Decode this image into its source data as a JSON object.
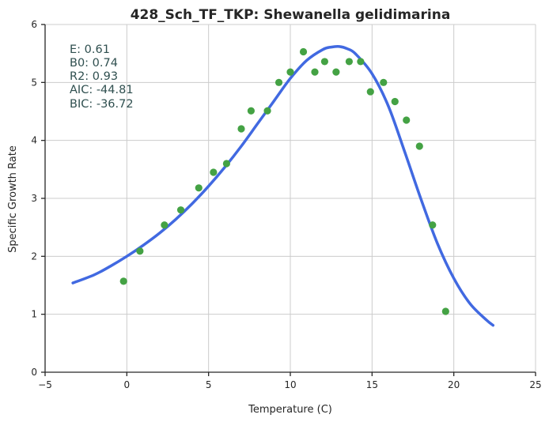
{
  "chart_data": {
    "type": "scatter",
    "title": "428_Sch_TF_TKP: Shewanella gelidimarina",
    "xlabel": "Temperature (C)",
    "ylabel": "Specific Growth Rate",
    "xlim": [
      -5,
      25
    ],
    "ylim": [
      0,
      6
    ],
    "xticks": [
      -5,
      0,
      5,
      10,
      15,
      20,
      25
    ],
    "yticks": [
      0,
      1,
      2,
      3,
      4,
      5,
      6
    ],
    "xtick_labels": [
      "−5",
      "0",
      "5",
      "10",
      "15",
      "20",
      "25"
    ],
    "ytick_labels": [
      "0",
      "1",
      "2",
      "3",
      "4",
      "5",
      "6"
    ],
    "grid": true,
    "points": {
      "color": "#44a244",
      "x": [
        -0.2,
        0.8,
        2.3,
        3.3,
        4.4,
        5.3,
        6.1,
        7.0,
        7.6,
        8.6,
        9.3,
        10.0,
        10.8,
        11.5,
        12.1,
        12.8,
        13.6,
        14.3,
        14.9,
        15.7,
        16.4,
        17.1,
        17.9,
        18.7,
        19.5
      ],
      "y": [
        1.57,
        2.09,
        2.54,
        2.8,
        3.18,
        3.45,
        3.6,
        4.2,
        4.51,
        4.51,
        5.0,
        5.18,
        5.53,
        5.18,
        5.36,
        5.18,
        5.36,
        5.36,
        4.84,
        5.0,
        4.67,
        4.35,
        3.9,
        2.54,
        1.05
      ]
    },
    "fit_curve": {
      "color": "#4169e1",
      "x": [
        -3.3,
        -2,
        -1,
        0,
        1,
        2,
        3,
        4,
        5,
        6,
        7,
        8,
        9,
        10,
        11,
        12,
        12.5,
        13,
        13.5,
        14,
        15,
        16,
        17,
        18,
        19,
        20,
        21,
        22,
        22.4
      ],
      "y": [
        1.54,
        1.68,
        1.83,
        2.0,
        2.19,
        2.4,
        2.64,
        2.91,
        3.21,
        3.54,
        3.9,
        4.29,
        4.68,
        5.07,
        5.38,
        5.57,
        5.61,
        5.62,
        5.58,
        5.49,
        5.15,
        4.59,
        3.8,
        2.98,
        2.22,
        1.62,
        1.18,
        0.9,
        0.81
      ]
    }
  },
  "stats": {
    "e": "E:  0.61",
    "b0": "B0:  0.74",
    "r2": "R2:  0.93",
    "aic": "AIC: -44.81",
    "bic": "BIC: -36.72"
  }
}
